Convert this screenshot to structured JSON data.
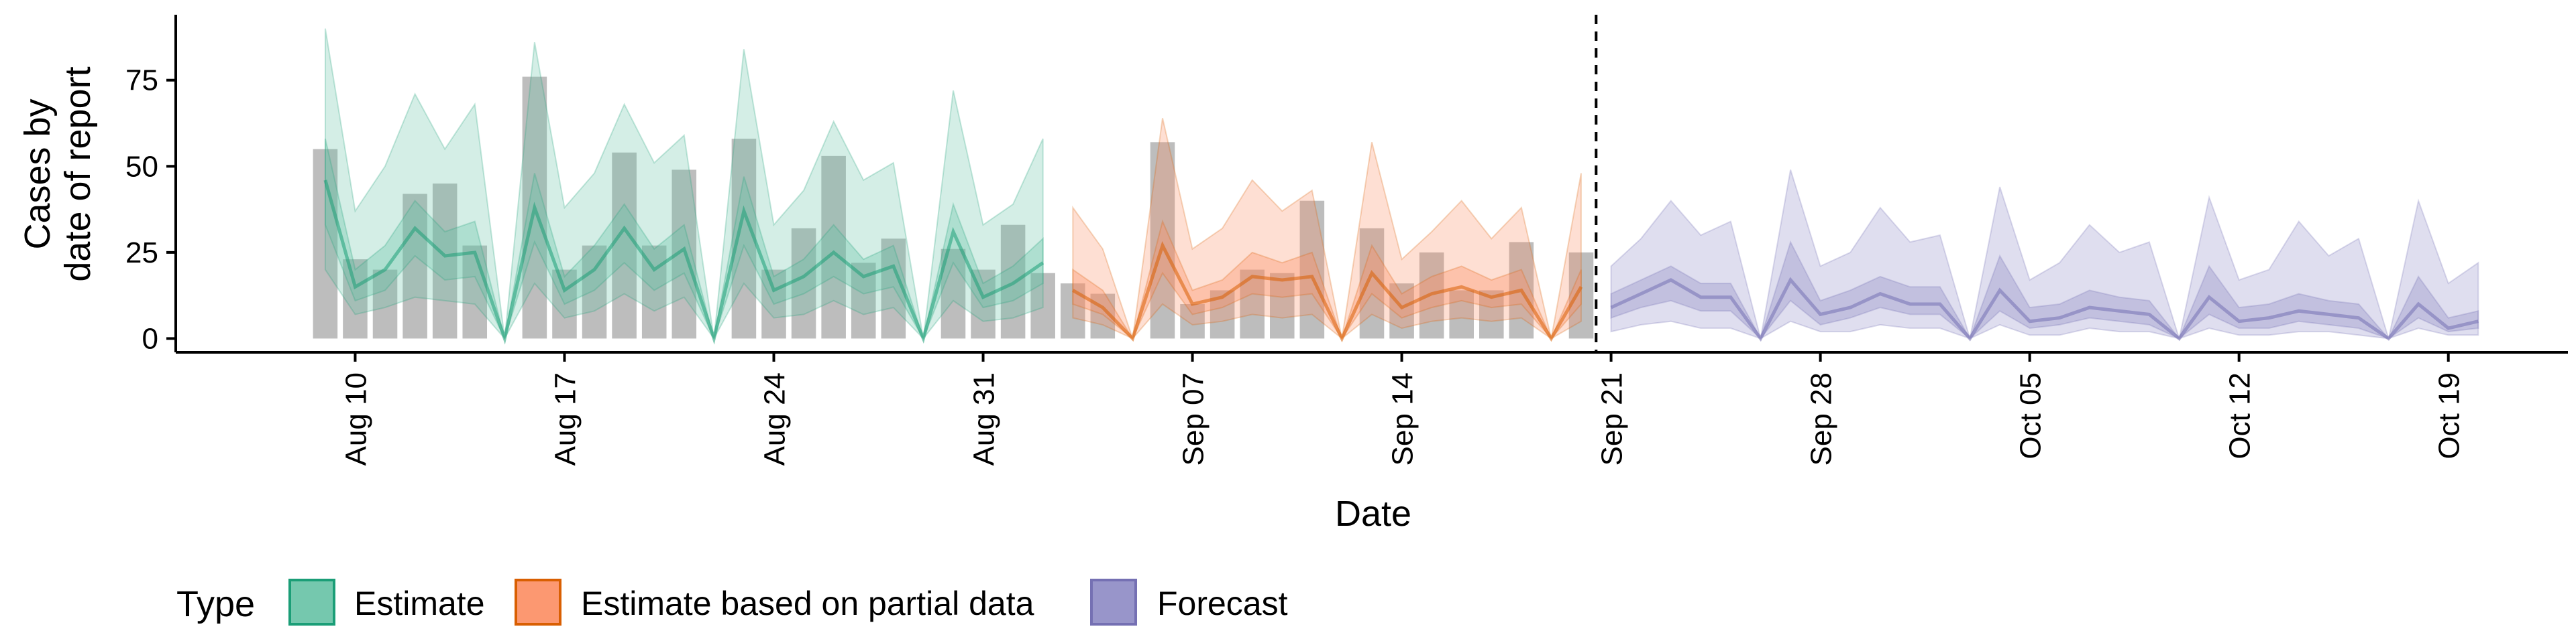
{
  "chart_data": {
    "type": "area",
    "xlabel": "Date",
    "ylabel": [
      "Cases by",
      "date of report"
    ],
    "yticks": [
      0,
      25,
      50,
      75
    ],
    "ylim": [
      -4,
      94
    ],
    "xlim": [
      "2020-08-04",
      "2020-10-23"
    ],
    "xticks": [
      {
        "date": "2020-08-10",
        "label": "Aug 10"
      },
      {
        "date": "2020-08-17",
        "label": "Aug 17"
      },
      {
        "date": "2020-08-24",
        "label": "Aug 24"
      },
      {
        "date": "2020-08-31",
        "label": "Aug 31"
      },
      {
        "date": "2020-09-07",
        "label": "Sep 07"
      },
      {
        "date": "2020-09-14",
        "label": "Sep 14"
      },
      {
        "date": "2020-09-21",
        "label": "Sep 21"
      },
      {
        "date": "2020-09-28",
        "label": "Sep 28"
      },
      {
        "date": "2020-10-05",
        "label": "Oct 05"
      },
      {
        "date": "2020-10-12",
        "label": "Oct 12"
      },
      {
        "date": "2020-10-19",
        "label": "Oct 19"
      }
    ],
    "vline_date": "2020-09-20",
    "bar_color": "#bdbdbd",
    "bars": {
      "start_date": "2020-08-09",
      "values": [
        55,
        23,
        20,
        42,
        45,
        27,
        0,
        76,
        20,
        27,
        54,
        27,
        49,
        0,
        58,
        20,
        32,
        53,
        22,
        29,
        0,
        26,
        20,
        33,
        19,
        16,
        13,
        0,
        57,
        10,
        14,
        20,
        19,
        40,
        0,
        32,
        16,
        25,
        14,
        14,
        28,
        0,
        25
      ]
    },
    "series": [
      {
        "name": "Estimate",
        "color": "#1b9e77",
        "fill": "#66c2a5",
        "start_date": "2020-08-09",
        "median": [
          46,
          15,
          20,
          32,
          24,
          25,
          0,
          38,
          14,
          20,
          32,
          20,
          26,
          0,
          37,
          14,
          18,
          25,
          18,
          21,
          0,
          31,
          12,
          16,
          22
        ],
        "lower90": [
          20,
          7,
          9,
          12,
          11,
          10,
          0,
          16,
          6,
          8,
          13,
          8,
          12,
          0,
          16,
          6,
          7,
          11,
          7,
          9,
          0,
          11,
          5,
          6,
          9
        ],
        "upper90": [
          90,
          37,
          50,
          71,
          55,
          68,
          0,
          86,
          38,
          48,
          68,
          51,
          59,
          0,
          84,
          33,
          43,
          63,
          46,
          51,
          0,
          72,
          33,
          39,
          58
        ],
        "lower50": [
          33,
          11,
          14,
          24,
          17,
          18,
          0,
          28,
          10,
          14,
          22,
          14,
          19,
          0,
          27,
          10,
          13,
          18,
          13,
          15,
          0,
          22,
          9,
          11,
          16
        ],
        "upper50": [
          58,
          20,
          27,
          40,
          31,
          34,
          0,
          48,
          18,
          27,
          39,
          26,
          33,
          0,
          47,
          18,
          23,
          33,
          23,
          27,
          0,
          39,
          16,
          21,
          29
        ]
      },
      {
        "name": "Estimate based on partial data",
        "color": "#d95f02",
        "fill": "#fc8d62",
        "start_date": "2020-09-03",
        "median": [
          14,
          9,
          0,
          27,
          10,
          12,
          18,
          17,
          18,
          0,
          19,
          9,
          13,
          15,
          12,
          14,
          0,
          15
        ],
        "lower90": [
          6,
          4,
          0,
          10,
          4,
          5,
          7,
          6,
          7,
          0,
          7,
          3,
          5,
          6,
          5,
          6,
          0,
          5
        ],
        "upper90": [
          38,
          26,
          0,
          64,
          26,
          32,
          46,
          37,
          43,
          0,
          57,
          23,
          31,
          40,
          29,
          38,
          0,
          48
        ],
        "lower50": [
          10,
          7,
          0,
          19,
          7,
          9,
          13,
          12,
          13,
          0,
          13,
          6,
          9,
          11,
          9,
          10,
          0,
          10
        ],
        "upper50": [
          20,
          14,
          0,
          34,
          14,
          17,
          25,
          22,
          25,
          0,
          27,
          13,
          18,
          21,
          17,
          20,
          0,
          20
        ]
      },
      {
        "name": "Forecast",
        "color": "#7570b3",
        "fill": "#8d8ac4",
        "start_date": "2020-09-21",
        "median": [
          9,
          13,
          17,
          12,
          12,
          0,
          17,
          7,
          9,
          13,
          10,
          10,
          0,
          14,
          5,
          6,
          9,
          8,
          7,
          0,
          12,
          5,
          6,
          8,
          7,
          6,
          0,
          10,
          3,
          5
        ],
        "lower90": [
          2,
          4,
          5,
          3,
          3,
          0,
          5,
          2,
          2,
          4,
          3,
          3,
          0,
          4,
          1,
          1,
          3,
          2,
          2,
          0,
          3,
          1,
          1,
          2,
          2,
          1,
          0,
          3,
          1,
          1
        ],
        "upper90": [
          21,
          29,
          40,
          30,
          34,
          0,
          49,
          21,
          25,
          38,
          28,
          30,
          0,
          44,
          17,
          22,
          33,
          25,
          28,
          0,
          41,
          17,
          20,
          34,
          24,
          29,
          0,
          40,
          16,
          22
        ],
        "lower50": [
          6,
          9,
          11,
          8,
          8,
          0,
          11,
          4,
          6,
          9,
          7,
          7,
          0,
          8,
          3,
          4,
          6,
          5,
          4,
          0,
          7,
          3,
          3,
          5,
          4,
          3,
          0,
          6,
          2,
          3
        ],
        "upper50": [
          13,
          17,
          21,
          16,
          16,
          0,
          28,
          11,
          14,
          18,
          15,
          15,
          0,
          24,
          9,
          10,
          14,
          12,
          11,
          0,
          21,
          9,
          10,
          13,
          11,
          10,
          0,
          18,
          6,
          8
        ]
      }
    ],
    "legend": {
      "title": "Type",
      "position": "bottom",
      "items": [
        "Estimate",
        "Estimate based on partial data",
        "Forecast"
      ]
    }
  }
}
